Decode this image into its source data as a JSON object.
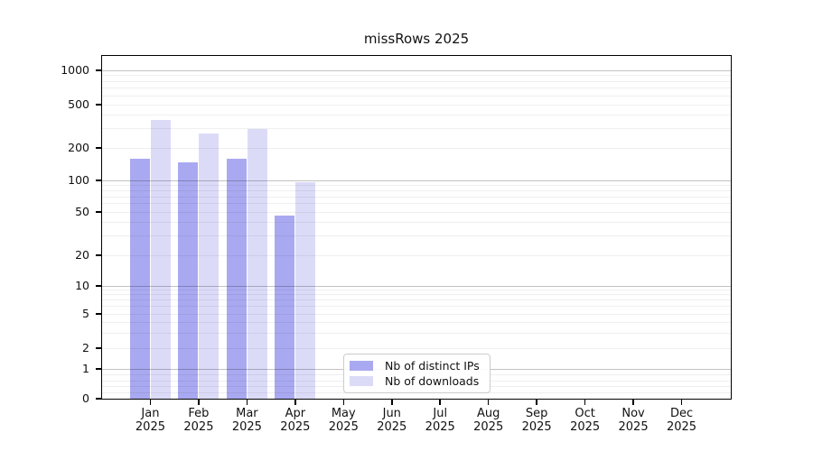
{
  "title": "missRows 2025",
  "chart_data": {
    "type": "bar",
    "title": "missRows 2025",
    "categories": [
      "Jan",
      "Feb",
      "Mar",
      "Apr",
      "May",
      "Jun",
      "Jul",
      "Aug",
      "Sep",
      "Oct",
      "Nov",
      "Dec"
    ],
    "category_year": "2025",
    "series": [
      {
        "name": "Nb of distinct IPs",
        "color": "#a9a9f1",
        "values": [
          160,
          148,
          158,
          46,
          null,
          null,
          null,
          null,
          null,
          null,
          null,
          null
        ]
      },
      {
        "name": "Nb of downloads",
        "color": "#dbdbf8",
        "values": [
          363,
          270,
          297,
          97,
          null,
          null,
          null,
          null,
          null,
          null,
          null,
          null
        ]
      }
    ],
    "yticks": [
      0,
      1,
      2,
      5,
      10,
      20,
      50,
      100,
      200,
      500,
      1000
    ],
    "grid_major": [
      1,
      10,
      100,
      1000
    ],
    "grid_minor": [
      0.2,
      0.4,
      0.6,
      0.8,
      2,
      3,
      4,
      5,
      6,
      7,
      8,
      9,
      20,
      30,
      40,
      50,
      60,
      70,
      80,
      90,
      200,
      300,
      400,
      500,
      600,
      700,
      800,
      900
    ],
    "scale": "asinh (log above 1, linear 0-1)",
    "ylim": [
      0,
      1380
    ],
    "grid": "horizontal major and minor, drawn over bars",
    "legend_position": "inside plot, lower center-left",
    "colors": {
      "major_grid": "#c2c2c2",
      "minor_grid": "#efefef",
      "spine": "#000000",
      "text": "#111111",
      "background": "#ffffff"
    }
  }
}
